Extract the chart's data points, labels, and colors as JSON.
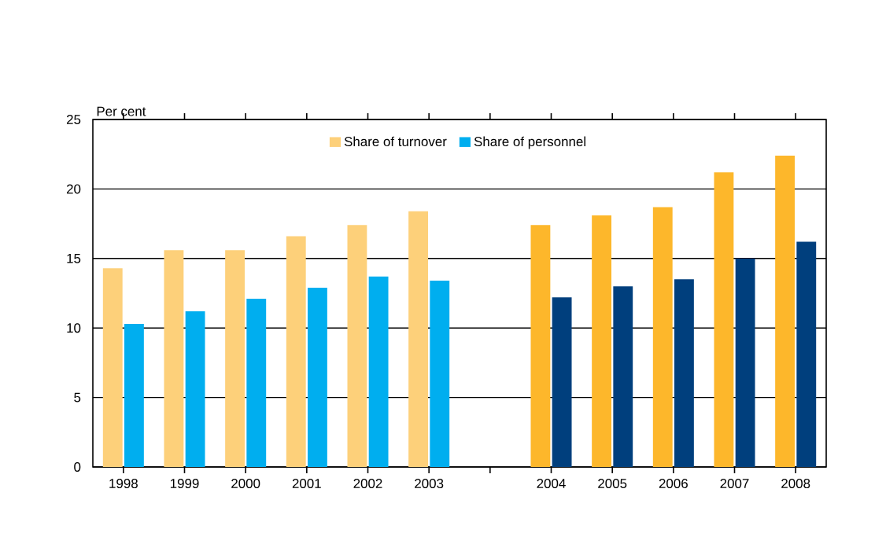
{
  "chart_data": {
    "type": "bar",
    "ylabel": "Per cent",
    "categories": [
      "1998",
      "1999",
      "2000",
      "2001",
      "2002",
      "2003",
      null,
      "2004",
      "2005",
      "2006",
      "2007",
      "2008"
    ],
    "series": [
      {
        "name": "Share of turnover",
        "color": "#fdd07a",
        "colors": [
          "#fdd07a",
          "#fdd07a",
          "#fdd07a",
          "#fdd07a",
          "#fdd07a",
          "#fdd07a",
          "#fdd07a",
          "#fdb72b",
          "#fdb72b",
          "#fdb72b",
          "#fdb72b",
          "#fdb72b"
        ],
        "values": [
          14.3,
          15.6,
          15.6,
          16.6,
          17.4,
          18.4,
          null,
          17.4,
          18.1,
          18.7,
          21.2,
          22.4
        ]
      },
      {
        "name": "Share of personnel",
        "color": "#00aeef",
        "colors": [
          "#00aeef",
          "#00aeef",
          "#00aeef",
          "#00aeef",
          "#00aeef",
          "#00aeef",
          "#00aeef",
          "#003f7d",
          "#003f7d",
          "#003f7d",
          "#003f7d",
          "#003f7d"
        ],
        "values": [
          10.3,
          11.2,
          12.1,
          12.9,
          13.7,
          13.4,
          null,
          12.2,
          13.0,
          13.5,
          15.0,
          16.2
        ]
      }
    ],
    "ylim": [
      0,
      25
    ],
    "yticks": [
      0,
      5,
      10,
      15,
      20,
      25
    ],
    "grid": "y",
    "legend": "top"
  }
}
